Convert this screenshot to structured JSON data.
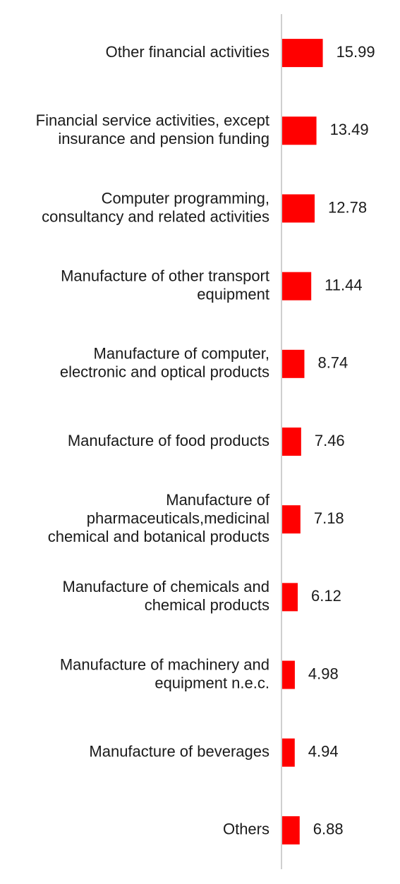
{
  "chart_data": {
    "type": "bar",
    "orientation": "horizontal",
    "title": "",
    "xlabel": "",
    "ylabel": "",
    "xlim": [
      0,
      17
    ],
    "grid": false,
    "legend": "none",
    "bar_color": "#ff0000",
    "axis_color": "#bfbfbf",
    "categories": [
      [
        "Other financial activities"
      ],
      [
        "Financial service activities, except",
        "insurance and pension funding"
      ],
      [
        "Computer programming,",
        "consultancy and related activities"
      ],
      [
        "Manufacture of other transport",
        "equipment"
      ],
      [
        "Manufacture of computer,",
        "electronic and optical products"
      ],
      [
        "Manufacture of food products"
      ],
      [
        "Manufacture of",
        "pharmaceuticals,medicinal",
        "chemical and botanical products"
      ],
      [
        "Manufacture of chemicals and",
        "chemical products"
      ],
      [
        "Manufacture of machinery and",
        "equipment n.e.c."
      ],
      [
        "Manufacture of beverages"
      ],
      [
        "Others"
      ]
    ],
    "values": [
      15.99,
      13.49,
      12.78,
      11.44,
      8.74,
      7.46,
      7.18,
      6.12,
      4.98,
      4.94,
      6.88
    ],
    "value_labels": [
      "15.99",
      "13.49",
      "12.78",
      "11.44",
      "8.74",
      "7.46",
      "7.18",
      "6.12",
      "4.98",
      "4.94",
      "6.88"
    ]
  }
}
